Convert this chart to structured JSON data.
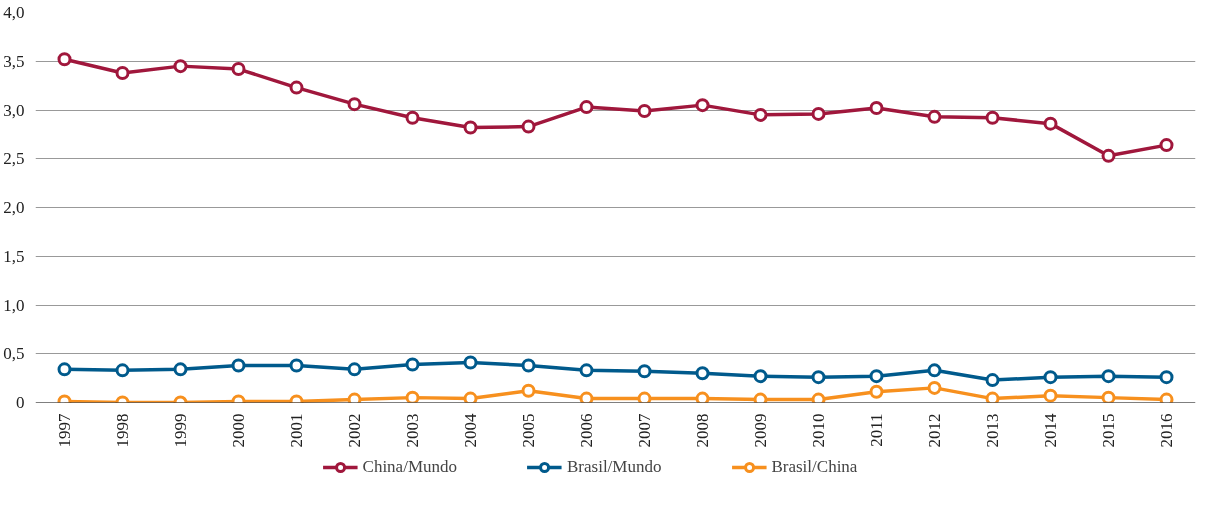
{
  "chart_data": {
    "type": "line",
    "categories": [
      "1997",
      "1998",
      "1999",
      "2000",
      "2001",
      "2002",
      "2003",
      "2004",
      "2005",
      "2006",
      "2007",
      "2008",
      "2009",
      "2010",
      "2011",
      "2012",
      "2013",
      "2014",
      "2015",
      "2016"
    ],
    "series": [
      {
        "name": "China/Mundo",
        "color": "#a0173c",
        "values": [
          3.52,
          3.38,
          3.45,
          3.42,
          3.23,
          3.06,
          2.92,
          2.82,
          2.83,
          3.03,
          2.99,
          3.05,
          2.95,
          2.96,
          3.02,
          2.93,
          2.92,
          2.86,
          2.53,
          2.64
        ]
      },
      {
        "name": "Brasil/Mundo",
        "color": "#005a8c",
        "values": [
          0.34,
          0.33,
          0.34,
          0.38,
          0.38,
          0.34,
          0.39,
          0.41,
          0.38,
          0.33,
          0.32,
          0.3,
          0.27,
          0.26,
          0.27,
          0.33,
          0.23,
          0.26,
          0.27,
          0.26
        ]
      },
      {
        "name": "Brasil/China",
        "color": "#f7901e",
        "values": [
          0.01,
          0,
          0,
          0.01,
          0.01,
          0.03,
          0.05,
          0.04,
          0.12,
          0.04,
          0.04,
          0.04,
          0.03,
          0.03,
          0.11,
          0.15,
          0.04,
          0.07,
          0.05,
          0.03
        ]
      }
    ],
    "ylim": [
      0,
      4.0
    ],
    "yticks": [
      0,
      {
        "value": 0.5,
        "label": "0,5"
      },
      {
        "value": 1.0,
        "label": "1,0"
      },
      {
        "value": 1.5,
        "label": "1,5"
      },
      {
        "value": 2.0,
        "label": "2,0"
      },
      {
        "value": 2.5,
        "label": "2,5"
      },
      {
        "value": 3.0,
        "label": "3,0"
      },
      {
        "value": 3.5,
        "label": "3,5"
      },
      {
        "value": 4.0,
        "label": "4,0"
      }
    ],
    "grid": "y",
    "legend": "bottom",
    "marker": "circle",
    "line_style": "solid"
  }
}
